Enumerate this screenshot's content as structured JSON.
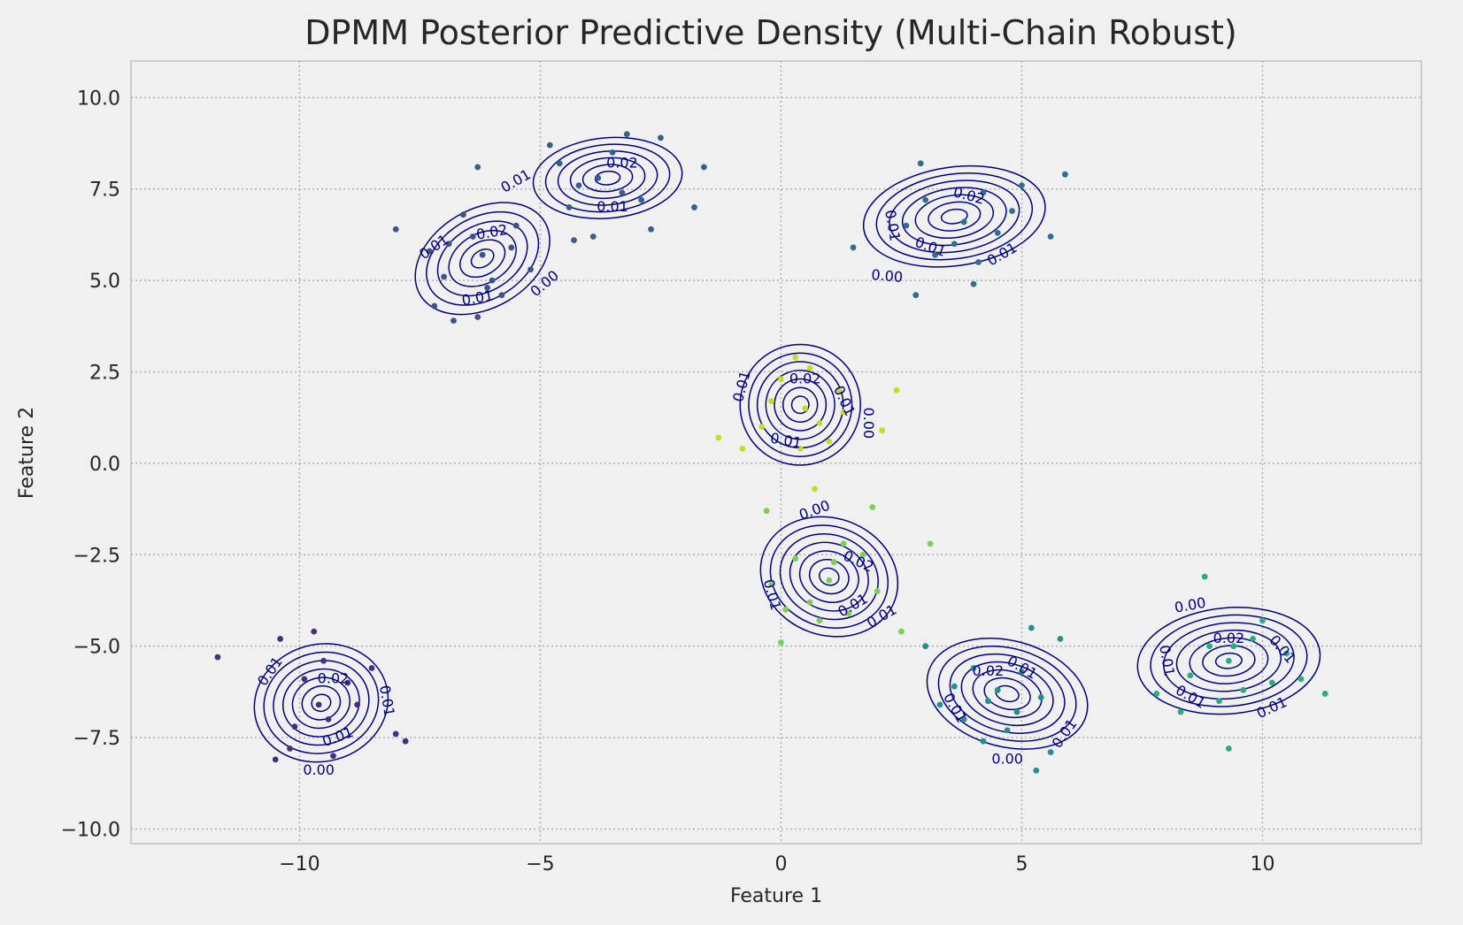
{
  "chart_data": {
    "type": "scatter",
    "title": "DPMM Posterior Predictive Density (Multi-Chain Robust)",
    "xlabel": "Feature 1",
    "ylabel": "Feature 2",
    "xlim": [
      -13.5,
      13.3
    ],
    "ylim": [
      -10.4,
      11.0
    ],
    "x_ticks": [
      -10,
      -5,
      0,
      5,
      10
    ],
    "x_tick_labels": [
      "−10",
      "−5",
      "0",
      "5",
      "10"
    ],
    "y_ticks": [
      10.0,
      7.5,
      5.0,
      2.5,
      0.0,
      -2.5,
      -5.0,
      -7.5,
      -10.0
    ],
    "y_tick_labels": [
      "10.0",
      "7.5",
      "5.0",
      "2.5",
      "0.0",
      "−2.5",
      "−5.0",
      "−7.5",
      "−10.0"
    ],
    "grid": true,
    "contour_color": "#000080",
    "background": "#f0f0f0",
    "contour_levels": [
      "0.00",
      "0.01",
      "0.02"
    ],
    "series": [
      {
        "color": "#46307e",
        "values": [
          [
            -9.6,
            -6.6
          ],
          [
            -11.7,
            -5.3
          ],
          [
            -9.7,
            -4.6
          ],
          [
            -10.4,
            -4.8
          ],
          [
            -8.5,
            -5.6
          ],
          [
            -8.0,
            -7.4
          ],
          [
            -7.8,
            -7.6
          ],
          [
            -10.2,
            -7.8
          ],
          [
            -10.5,
            -8.1
          ],
          [
            -9.3,
            -8.0
          ],
          [
            -9.0,
            -6.0
          ],
          [
            -9.9,
            -5.9
          ],
          [
            -10.1,
            -7.2
          ],
          [
            -9.4,
            -7.0
          ],
          [
            -9.5,
            -5.4
          ],
          [
            -8.8,
            -6.6
          ]
        ]
      },
      {
        "color": "#3b528b",
        "values": [
          [
            -6.2,
            5.7
          ],
          [
            -8.0,
            6.4
          ],
          [
            -7.2,
            4.3
          ],
          [
            -6.3,
            4.0
          ],
          [
            -6.8,
            3.9
          ],
          [
            -5.5,
            6.5
          ],
          [
            -5.2,
            5.3
          ],
          [
            -6.6,
            6.8
          ],
          [
            -7.0,
            5.1
          ],
          [
            -6.0,
            5.0
          ],
          [
            -5.8,
            4.6
          ],
          [
            -7.3,
            5.8
          ],
          [
            -6.4,
            6.2
          ],
          [
            -5.6,
            5.9
          ],
          [
            -6.9,
            6.0
          ],
          [
            -6.1,
            4.8
          ]
        ]
      },
      {
        "color": "#355f8d",
        "values": [
          [
            -3.8,
            7.8
          ],
          [
            -6.3,
            8.1
          ],
          [
            -3.2,
            9.0
          ],
          [
            -4.8,
            8.7
          ],
          [
            -2.5,
            8.9
          ],
          [
            -1.6,
            8.1
          ],
          [
            -1.8,
            7.0
          ],
          [
            -3.9,
            6.2
          ],
          [
            -4.3,
            6.1
          ],
          [
            -2.7,
            6.4
          ],
          [
            -4.2,
            7.6
          ],
          [
            -3.3,
            7.4
          ],
          [
            -4.6,
            8.2
          ],
          [
            -3.5,
            8.5
          ],
          [
            -2.9,
            7.2
          ],
          [
            -4.4,
            7.0
          ]
        ]
      },
      {
        "color": "#2c728e",
        "values": [
          [
            3.8,
            6.6
          ],
          [
            5.9,
            7.9
          ],
          [
            2.9,
            8.2
          ],
          [
            1.5,
            5.9
          ],
          [
            2.8,
            4.6
          ],
          [
            4.0,
            4.9
          ],
          [
            5.6,
            6.2
          ],
          [
            3.2,
            5.7
          ],
          [
            4.2,
            7.4
          ],
          [
            4.8,
            6.9
          ],
          [
            3.0,
            7.2
          ],
          [
            3.6,
            6.0
          ],
          [
            4.5,
            6.3
          ],
          [
            4.1,
            5.5
          ],
          [
            2.6,
            6.5
          ],
          [
            5.0,
            7.6
          ]
        ]
      },
      {
        "color": "#21918c",
        "values": [
          [
            4.5,
            -6.2
          ],
          [
            5.8,
            -4.8
          ],
          [
            5.2,
            -4.5
          ],
          [
            3.0,
            -5.0
          ],
          [
            5.3,
            -8.4
          ],
          [
            5.6,
            -7.9
          ],
          [
            3.8,
            -7.0
          ],
          [
            4.0,
            -5.6
          ],
          [
            4.9,
            -6.8
          ],
          [
            4.3,
            -6.5
          ],
          [
            5.0,
            -5.7
          ],
          [
            3.6,
            -6.1
          ],
          [
            4.7,
            -7.3
          ],
          [
            5.4,
            -6.4
          ],
          [
            4.2,
            -7.6
          ],
          [
            3.3,
            -6.6
          ]
        ]
      },
      {
        "color": "#28ae80",
        "values": [
          [
            9.3,
            -5.4
          ],
          [
            8.8,
            -3.1
          ],
          [
            11.3,
            -6.3
          ],
          [
            9.3,
            -7.8
          ],
          [
            7.8,
            -6.3
          ],
          [
            8.3,
            -6.8
          ],
          [
            10.0,
            -4.3
          ],
          [
            9.6,
            -6.2
          ],
          [
            10.5,
            -5.2
          ],
          [
            8.9,
            -5.0
          ],
          [
            9.1,
            -6.5
          ],
          [
            10.2,
            -6.0
          ],
          [
            8.5,
            -5.8
          ],
          [
            9.8,
            -4.8
          ],
          [
            10.8,
            -5.9
          ],
          [
            9.4,
            -5.0
          ]
        ]
      },
      {
        "color": "#7ad151",
        "values": [
          [
            1.0,
            -3.2
          ],
          [
            -0.3,
            -1.3
          ],
          [
            1.9,
            -1.2
          ],
          [
            3.1,
            -2.2
          ],
          [
            2.5,
            -4.6
          ],
          [
            0.0,
            -4.9
          ],
          [
            -0.2,
            -3.3
          ],
          [
            1.7,
            -2.5
          ],
          [
            0.6,
            -3.8
          ],
          [
            1.3,
            -2.2
          ],
          [
            0.3,
            -2.6
          ],
          [
            1.4,
            -4.1
          ],
          [
            0.8,
            -4.3
          ],
          [
            2.0,
            -3.5
          ],
          [
            0.1,
            -4.0
          ],
          [
            1.1,
            -2.7
          ]
        ]
      },
      {
        "color": "#bddf26",
        "values": [
          [
            0.5,
            1.5
          ],
          [
            2.4,
            2.0
          ],
          [
            2.1,
            0.9
          ],
          [
            -1.3,
            0.7
          ],
          [
            0.7,
            -0.7
          ],
          [
            -0.8,
            0.4
          ],
          [
            0.3,
            2.9
          ],
          [
            1.2,
            2.0
          ],
          [
            1.0,
            0.6
          ],
          [
            -0.4,
            1.0
          ],
          [
            0.0,
            2.3
          ],
          [
            0.8,
            1.1
          ],
          [
            -0.2,
            1.7
          ],
          [
            1.3,
            1.4
          ],
          [
            0.4,
            0.4
          ],
          [
            0.6,
            2.6
          ]
        ]
      }
    ],
    "clusters": [
      {
        "cx": -9.55,
        "cy": -6.55,
        "rx": 1.4,
        "ry": 1.6,
        "rot": -15,
        "rings": 7
      },
      {
        "cx": -6.2,
        "cy": 5.6,
        "rx": 1.5,
        "ry": 1.35,
        "rot": -30,
        "rings": 6
      },
      {
        "cx": -3.6,
        "cy": 7.8,
        "rx": 1.55,
        "ry": 1.1,
        "rot": -5,
        "rings": 6
      },
      {
        "cx": 3.6,
        "cy": 6.75,
        "rx": 1.9,
        "ry": 1.35,
        "rot": -8,
        "rings": 7
      },
      {
        "cx": 0.4,
        "cy": 1.6,
        "rx": 1.25,
        "ry": 1.65,
        "rot": 12,
        "rings": 7
      },
      {
        "cx": 1.0,
        "cy": -3.1,
        "rx": 1.45,
        "ry": 1.6,
        "rot": 20,
        "rings": 7
      },
      {
        "cx": 4.7,
        "cy": -6.3,
        "rx": 1.7,
        "ry": 1.45,
        "rot": 15,
        "rings": 7
      },
      {
        "cx": 9.3,
        "cy": -5.4,
        "rx": 1.9,
        "ry": 1.45,
        "rot": -5,
        "rings": 7
      }
    ],
    "annotations": [
      {
        "x": -9.6,
        "y": -8.4,
        "text": "0.00",
        "rot": 0
      },
      {
        "x": -10.6,
        "y": -5.7,
        "text": "0.01",
        "rot": -55
      },
      {
        "x": -8.2,
        "y": -6.5,
        "text": "0.01",
        "rot": 80
      },
      {
        "x": -9.2,
        "y": -7.5,
        "text": "0.01",
        "rot": -20
      },
      {
        "x": -9.3,
        "y": -5.9,
        "text": "0.02",
        "rot": 0
      },
      {
        "x": -7.2,
        "y": 5.9,
        "text": "0.01",
        "rot": -35
      },
      {
        "x": -6.3,
        "y": 4.5,
        "text": "0.01",
        "rot": -10
      },
      {
        "x": -6.0,
        "y": 6.3,
        "text": "0.02",
        "rot": -10
      },
      {
        "x": -4.9,
        "y": 4.9,
        "text": "0.00",
        "rot": -40
      },
      {
        "x": -5.5,
        "y": 7.7,
        "text": "0.01",
        "rot": -30
      },
      {
        "x": -3.5,
        "y": 7.0,
        "text": "0.01",
        "rot": 0
      },
      {
        "x": -3.3,
        "y": 8.2,
        "text": "0.02",
        "rot": 0
      },
      {
        "x": 2.2,
        "y": 5.1,
        "text": "0.00",
        "rot": 5
      },
      {
        "x": 2.3,
        "y": 6.5,
        "text": "0.01",
        "rot": 80
      },
      {
        "x": 3.1,
        "y": 5.9,
        "text": "0.01",
        "rot": 20
      },
      {
        "x": 3.9,
        "y": 7.3,
        "text": "0.02",
        "rot": 15
      },
      {
        "x": 4.6,
        "y": 5.7,
        "text": "0.01",
        "rot": -30
      },
      {
        "x": -0.8,
        "y": 2.1,
        "text": "0.01",
        "rot": -75
      },
      {
        "x": 0.5,
        "y": 2.3,
        "text": "0.02",
        "rot": 0
      },
      {
        "x": 1.3,
        "y": 1.7,
        "text": "0.01",
        "rot": 65
      },
      {
        "x": 1.8,
        "y": 1.1,
        "text": "0.00",
        "rot": 90
      },
      {
        "x": 0.1,
        "y": 0.6,
        "text": "0.01",
        "rot": 10
      },
      {
        "x": 0.7,
        "y": -1.3,
        "text": "0.00",
        "rot": -20
      },
      {
        "x": 1.6,
        "y": -2.7,
        "text": "0.02",
        "rot": 25
      },
      {
        "x": -0.2,
        "y": -3.6,
        "text": "0.01",
        "rot": 75
      },
      {
        "x": 1.5,
        "y": -3.9,
        "text": "0.01",
        "rot": -30
      },
      {
        "x": 2.1,
        "y": -4.2,
        "text": "0.01",
        "rot": -30
      },
      {
        "x": 4.7,
        "y": -8.1,
        "text": "0.00",
        "rot": 0
      },
      {
        "x": 3.6,
        "y": -6.7,
        "text": "0.01",
        "rot": 60
      },
      {
        "x": 4.3,
        "y": -5.7,
        "text": "0.02",
        "rot": 0
      },
      {
        "x": 5.0,
        "y": -5.6,
        "text": "0.01",
        "rot": 30
      },
      {
        "x": 5.9,
        "y": -7.4,
        "text": "0.01",
        "rot": -55
      },
      {
        "x": 8.5,
        "y": -3.9,
        "text": "0.00",
        "rot": -10
      },
      {
        "x": 8.0,
        "y": -5.4,
        "text": "0.01",
        "rot": 80
      },
      {
        "x": 9.3,
        "y": -4.8,
        "text": "0.02",
        "rot": 0
      },
      {
        "x": 10.4,
        "y": -5.1,
        "text": "0.01",
        "rot": 50
      },
      {
        "x": 8.5,
        "y": -6.4,
        "text": "0.01",
        "rot": 30
      },
      {
        "x": 10.2,
        "y": -6.7,
        "text": "0.01",
        "rot": -25
      }
    ]
  }
}
